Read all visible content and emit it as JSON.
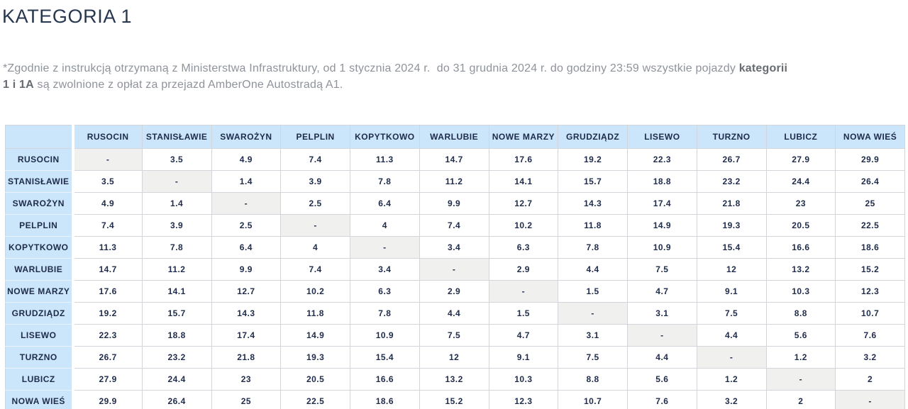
{
  "page": {
    "title": "KATEGORIA 1",
    "note": {
      "line1_normal": "*Zgodnie z instrukcją otrzymaną z Ministerstwa Infrastruktury, od 1 stycznia 2024 r.  do 31 grudnia 2024 r. do godziny 23:59 wszystkie pojazdy ",
      "line1_bold": "kategorii",
      "line2_bold": "1 i 1A",
      "line2_normal": " są zwolnione z opłat za przejazd AmberOne Autostradą A1."
    }
  },
  "table": {
    "corner_label": "",
    "empty_marker": "-",
    "stations": [
      "RUSOCIN",
      "STANISŁAWIE",
      "SWAROŻYN",
      "PELPLIN",
      "KOPYTKOWO",
      "WARLUBIE",
      "NOWE MARZY",
      "GRUDZIĄDZ",
      "LISEWO",
      "TURZNO",
      "LUBICZ",
      "NOWA WIEŚ"
    ],
    "matrix": [
      [
        null,
        3.5,
        4.9,
        7.4,
        11.3,
        14.7,
        17.6,
        19.2,
        22.3,
        26.7,
        27.9,
        29.9
      ],
      [
        3.5,
        null,
        1.4,
        3.9,
        7.8,
        11.2,
        14.1,
        15.7,
        18.8,
        23.2,
        24.4,
        26.4
      ],
      [
        4.9,
        1.4,
        null,
        2.5,
        6.4,
        9.9,
        12.7,
        14.3,
        17.4,
        21.8,
        23,
        25
      ],
      [
        7.4,
        3.9,
        2.5,
        null,
        4,
        7.4,
        10.2,
        11.8,
        14.9,
        19.3,
        20.5,
        22.5
      ],
      [
        11.3,
        7.8,
        6.4,
        4,
        null,
        3.4,
        6.3,
        7.8,
        10.9,
        15.4,
        16.6,
        18.6
      ],
      [
        14.7,
        11.2,
        9.9,
        7.4,
        3.4,
        null,
        2.9,
        4.4,
        7.5,
        12,
        13.2,
        15.2
      ],
      [
        17.6,
        14.1,
        12.7,
        10.2,
        6.3,
        2.9,
        null,
        1.5,
        4.7,
        9.1,
        10.3,
        12.3
      ],
      [
        19.2,
        15.7,
        14.3,
        11.8,
        7.8,
        4.4,
        1.5,
        null,
        3.1,
        7.5,
        8.8,
        10.7
      ],
      [
        22.3,
        18.8,
        17.4,
        14.9,
        10.9,
        7.5,
        4.7,
        3.1,
        null,
        4.4,
        5.6,
        7.6
      ],
      [
        26.7,
        23.2,
        21.8,
        19.3,
        15.4,
        12,
        9.1,
        7.5,
        4.4,
        null,
        1.2,
        3.2
      ],
      [
        27.9,
        24.4,
        23,
        20.5,
        16.6,
        13.2,
        10.3,
        8.8,
        5.6,
        1.2,
        null,
        2
      ],
      [
        29.9,
        26.4,
        25,
        22.5,
        18.6,
        15.2,
        12.3,
        10.7,
        7.6,
        3.2,
        2,
        null
      ]
    ]
  },
  "colors": {
    "title_navy": "#26374f",
    "cell_navy": "#1e2b4a",
    "header_blue": "#cbe6fb",
    "diag_gray": "#f0f0ee",
    "grid_border": "#d2d6da",
    "note_gray": "#8e939b",
    "note_bold_gray": "#676b72"
  }
}
